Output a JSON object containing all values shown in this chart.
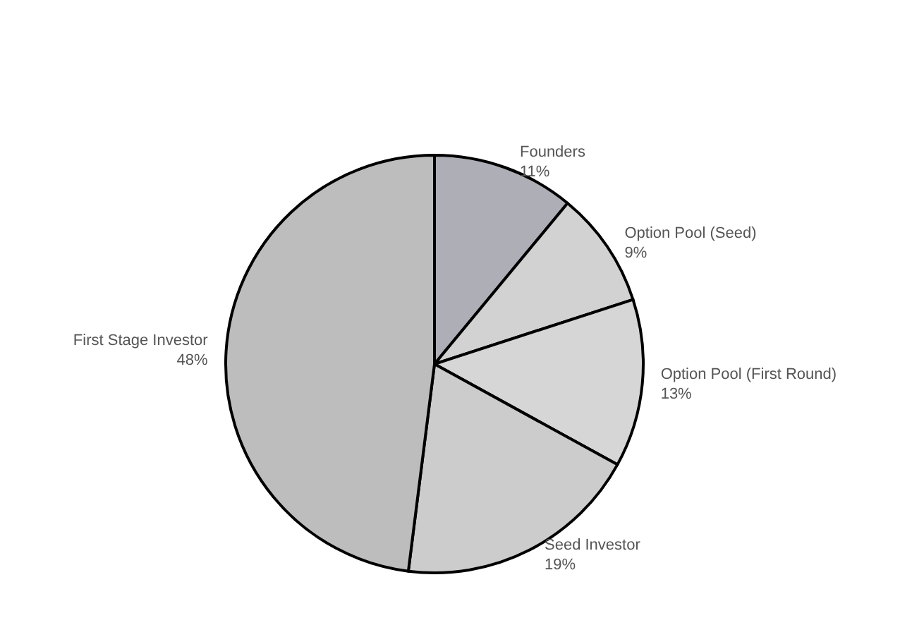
{
  "chart_data": {
    "type": "pie",
    "categories": [
      "Founders",
      "Option Pool (Seed)",
      "Option Pool (First Round)",
      "Seed Investor",
      "First Stage Investor"
    ],
    "values": [
      11,
      9,
      13,
      19,
      48
    ],
    "value_labels": [
      "11%",
      "9%",
      "13%",
      "19%",
      "48%"
    ],
    "colors": [
      "#aeaeb6",
      "#d2d2d2",
      "#d6d6d6",
      "#cccccc",
      "#bdbdbd"
    ]
  }
}
